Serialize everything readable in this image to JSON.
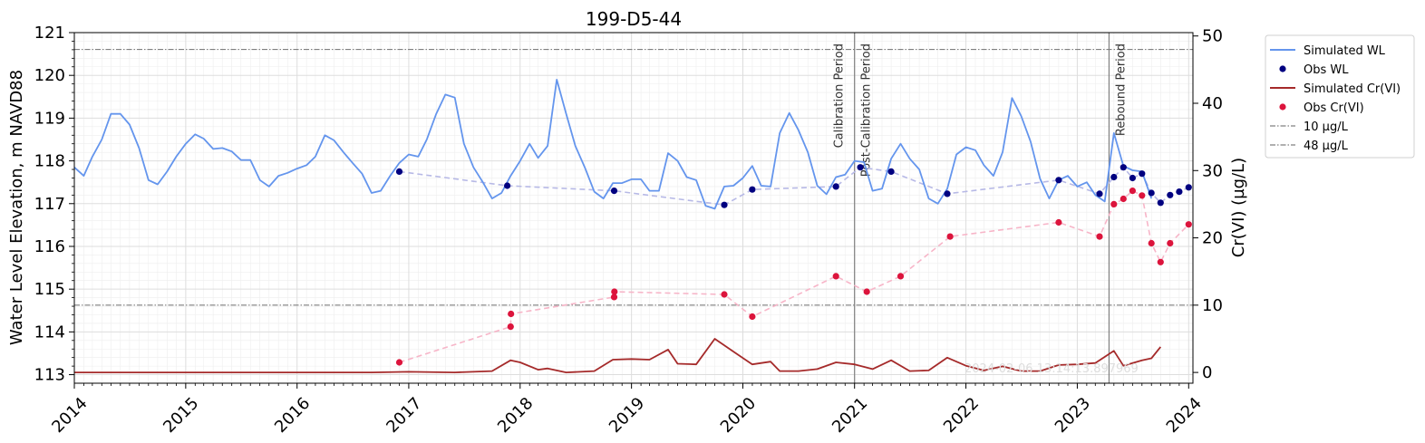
{
  "chart_data": {
    "type": "line",
    "title": "199-D5-44",
    "ylabel": "Water Level Elevation, m NAVD88",
    "y2label": "Cr(VI) (µg/L)",
    "xlim": [
      "2014-01-01",
      "2024-01-15"
    ],
    "ylim": [
      112.8,
      121
    ],
    "y2lim": [
      -1.6,
      50.5
    ],
    "x_ticks": [
      "2014",
      "2015",
      "2016",
      "2017",
      "2018",
      "2019",
      "2020",
      "2021",
      "2022",
      "2023",
      "2024"
    ],
    "y_ticks": [
      "113",
      "114",
      "115",
      "116",
      "117",
      "118",
      "119",
      "120",
      "121"
    ],
    "y2_ticks": [
      "0",
      "10",
      "20",
      "30",
      "40",
      "50"
    ],
    "grid": true,
    "legend_position": "outside-right",
    "legend": [
      "Simulated WL",
      "Obs WL",
      "Simulated Cr(VI)",
      "Obs Cr(VI)",
      "10 µg/L",
      "48 µg/L"
    ],
    "colors": {
      "sim_wl": "#6495ED",
      "obs_wl": "#000080",
      "sim_cr": "#A52A2A",
      "obs_cr": "#DC143C",
      "obs_wl_link": "#b7b9e6",
      "obs_cr_link": "#f7b5c8",
      "threshold": "#808080",
      "period_line": "#808080"
    },
    "thresholds": [
      {
        "name": "10 µg/L",
        "value": 10
      },
      {
        "name": "48 µg/L",
        "value": 48
      }
    ],
    "periods": [
      {
        "label": "Calibration Period",
        "date": "2021-01-01",
        "side": "left"
      },
      {
        "label": "Post-Calibration Period",
        "date": "2021-01-01",
        "side": "right"
      },
      {
        "label": "Rebound Period",
        "date": "2023-04-15",
        "side": "right"
      }
    ],
    "watermark": "2024-02-06 13:14:13.897969",
    "series": [
      {
        "name": "Simulated WL",
        "kind": "line",
        "axis": "left",
        "points": [
          [
            "2014-01-01",
            117.85
          ],
          [
            "2014-02-01",
            117.65
          ],
          [
            "2014-03-01",
            118.1
          ],
          [
            "2014-04-01",
            118.5
          ],
          [
            "2014-05-01",
            119.1
          ],
          [
            "2014-06-01",
            119.1
          ],
          [
            "2014-07-01",
            118.85
          ],
          [
            "2014-08-01",
            118.3
          ],
          [
            "2014-09-01",
            117.55
          ],
          [
            "2014-10-01",
            117.45
          ],
          [
            "2014-11-01",
            117.75
          ],
          [
            "2014-12-01",
            118.1
          ],
          [
            "2015-01-01",
            118.4
          ],
          [
            "2015-02-01",
            118.62
          ],
          [
            "2015-03-01",
            118.52
          ],
          [
            "2015-04-01",
            118.28
          ],
          [
            "2015-05-01",
            118.3
          ],
          [
            "2015-06-01",
            118.22
          ],
          [
            "2015-07-01",
            118.02
          ],
          [
            "2015-08-01",
            118.02
          ],
          [
            "2015-09-01",
            117.55
          ],
          [
            "2015-10-01",
            117.4
          ],
          [
            "2015-11-01",
            117.65
          ],
          [
            "2015-12-01",
            117.72
          ],
          [
            "2016-01-01",
            117.82
          ],
          [
            "2016-02-01",
            117.9
          ],
          [
            "2016-03-01",
            118.1
          ],
          [
            "2016-04-01",
            118.6
          ],
          [
            "2016-05-01",
            118.48
          ],
          [
            "2016-06-01",
            118.2
          ],
          [
            "2016-07-01",
            117.95
          ],
          [
            "2016-08-01",
            117.7
          ],
          [
            "2016-09-01",
            117.25
          ],
          [
            "2016-10-01",
            117.3
          ],
          [
            "2016-11-01",
            117.65
          ],
          [
            "2016-12-01",
            117.95
          ],
          [
            "2017-01-01",
            118.15
          ],
          [
            "2017-02-01",
            118.1
          ],
          [
            "2017-03-01",
            118.5
          ],
          [
            "2017-04-01",
            119.1
          ],
          [
            "2017-05-01",
            119.55
          ],
          [
            "2017-06-01",
            119.48
          ],
          [
            "2017-07-01",
            118.4
          ],
          [
            "2017-08-01",
            117.85
          ],
          [
            "2017-09-01",
            117.5
          ],
          [
            "2017-10-01",
            117.12
          ],
          [
            "2017-11-01",
            117.25
          ],
          [
            "2017-12-01",
            117.65
          ],
          [
            "2018-01-01",
            118.0
          ],
          [
            "2018-02-01",
            118.4
          ],
          [
            "2018-03-01",
            118.07
          ],
          [
            "2018-04-01",
            118.35
          ],
          [
            "2018-05-01",
            119.9
          ],
          [
            "2018-06-01",
            119.1
          ],
          [
            "2018-07-01",
            118.35
          ],
          [
            "2018-08-01",
            117.85
          ],
          [
            "2018-09-01",
            117.28
          ],
          [
            "2018-10-01",
            117.12
          ],
          [
            "2018-11-01",
            117.48
          ],
          [
            "2018-12-01",
            117.48
          ],
          [
            "2019-01-01",
            117.57
          ],
          [
            "2019-02-01",
            117.57
          ],
          [
            "2019-03-01",
            117.3
          ],
          [
            "2019-04-01",
            117.3
          ],
          [
            "2019-05-01",
            118.18
          ],
          [
            "2019-06-01",
            118.0
          ],
          [
            "2019-07-01",
            117.62
          ],
          [
            "2019-08-01",
            117.55
          ],
          [
            "2019-09-01",
            116.95
          ],
          [
            "2019-10-01",
            116.88
          ],
          [
            "2019-11-01",
            117.4
          ],
          [
            "2019-12-01",
            117.42
          ],
          [
            "2020-01-01",
            117.6
          ],
          [
            "2020-02-01",
            117.88
          ],
          [
            "2020-03-01",
            117.42
          ],
          [
            "2020-04-01",
            117.4
          ],
          [
            "2020-05-01",
            118.65
          ],
          [
            "2020-06-01",
            119.12
          ],
          [
            "2020-07-01",
            118.72
          ],
          [
            "2020-08-01",
            118.2
          ],
          [
            "2020-09-01",
            117.42
          ],
          [
            "2020-10-01",
            117.22
          ],
          [
            "2020-11-01",
            117.62
          ],
          [
            "2020-12-01",
            117.68
          ],
          [
            "2021-01-01",
            118.0
          ],
          [
            "2021-02-01",
            117.97
          ],
          [
            "2021-03-01",
            117.3
          ],
          [
            "2021-04-01",
            117.35
          ],
          [
            "2021-05-01",
            118.05
          ],
          [
            "2021-06-01",
            118.4
          ],
          [
            "2021-07-01",
            118.05
          ],
          [
            "2021-08-01",
            117.8
          ],
          [
            "2021-09-01",
            117.12
          ],
          [
            "2021-10-01",
            117.0
          ],
          [
            "2021-11-01",
            117.35
          ],
          [
            "2021-12-01",
            118.15
          ],
          [
            "2022-01-01",
            118.32
          ],
          [
            "2022-02-01",
            118.25
          ],
          [
            "2022-03-01",
            117.9
          ],
          [
            "2022-04-01",
            117.65
          ],
          [
            "2022-05-01",
            118.2
          ],
          [
            "2022-06-01",
            119.47
          ],
          [
            "2022-07-01",
            119.05
          ],
          [
            "2022-08-01",
            118.45
          ],
          [
            "2022-09-01",
            117.58
          ],
          [
            "2022-10-01",
            117.12
          ],
          [
            "2022-11-01",
            117.55
          ],
          [
            "2022-12-01",
            117.65
          ],
          [
            "2023-01-01",
            117.4
          ],
          [
            "2023-02-01",
            117.5
          ],
          [
            "2023-03-01",
            117.2
          ],
          [
            "2023-04-01",
            117.05
          ],
          [
            "2023-05-01",
            118.65
          ],
          [
            "2023-06-01",
            117.88
          ],
          [
            "2023-07-01",
            117.78
          ],
          [
            "2023-08-01",
            117.75
          ],
          [
            "2023-09-01",
            117.12
          ]
        ]
      },
      {
        "name": "Obs WL",
        "kind": "scatter",
        "axis": "left",
        "link": "dashed",
        "points": [
          [
            "2016-12-01",
            117.75
          ],
          [
            "2017-11-20",
            117.42
          ],
          [
            "2018-11-05",
            117.3
          ],
          [
            "2019-11-01",
            116.97
          ],
          [
            "2020-02-01",
            117.33
          ],
          [
            "2020-11-01",
            117.4
          ],
          [
            "2021-01-20",
            117.85
          ],
          [
            "2021-05-01",
            117.75
          ],
          [
            "2021-11-01",
            117.23
          ],
          [
            "2022-11-01",
            117.55
          ],
          [
            "2023-03-15",
            117.23
          ],
          [
            "2023-05-01",
            117.62
          ],
          [
            "2023-06-01",
            117.85
          ],
          [
            "2023-07-01",
            117.6
          ],
          [
            "2023-08-01",
            117.7
          ],
          [
            "2023-09-01",
            117.25
          ],
          [
            "2023-10-01",
            117.02
          ],
          [
            "2023-11-01",
            117.2
          ],
          [
            "2023-12-01",
            117.28
          ],
          [
            "2024-01-01",
            117.38
          ]
        ]
      },
      {
        "name": "Simulated Cr(VI)",
        "kind": "line",
        "axis": "right",
        "points": [
          [
            "2014-01-01",
            0
          ],
          [
            "2015-01-01",
            0
          ],
          [
            "2016-01-01",
            0
          ],
          [
            "2016-09-01",
            0
          ],
          [
            "2017-01-01",
            0.1
          ],
          [
            "2017-06-01",
            0
          ],
          [
            "2017-10-01",
            0.2
          ],
          [
            "2017-12-01",
            1.8
          ],
          [
            "2018-01-01",
            1.5
          ],
          [
            "2018-03-01",
            0.4
          ],
          [
            "2018-04-01",
            0.6
          ],
          [
            "2018-06-01",
            0
          ],
          [
            "2018-09-01",
            0.2
          ],
          [
            "2018-11-01",
            1.9
          ],
          [
            "2019-01-01",
            2.0
          ],
          [
            "2019-03-01",
            1.9
          ],
          [
            "2019-05-01",
            3.4
          ],
          [
            "2019-06-01",
            1.3
          ],
          [
            "2019-08-01",
            1.2
          ],
          [
            "2019-10-01",
            5.0
          ],
          [
            "2019-12-01",
            3.1
          ],
          [
            "2020-02-01",
            1.2
          ],
          [
            "2020-04-01",
            1.6
          ],
          [
            "2020-05-01",
            0.2
          ],
          [
            "2020-07-01",
            0.2
          ],
          [
            "2020-09-01",
            0.5
          ],
          [
            "2020-11-01",
            1.5
          ],
          [
            "2021-01-01",
            1.2
          ],
          [
            "2021-03-01",
            0.5
          ],
          [
            "2021-05-01",
            1.8
          ],
          [
            "2021-07-01",
            0.2
          ],
          [
            "2021-09-01",
            0.3
          ],
          [
            "2021-11-01",
            2.2
          ],
          [
            "2022-01-01",
            1.0
          ],
          [
            "2022-03-01",
            0.3
          ],
          [
            "2022-05-01",
            0.9
          ],
          [
            "2022-07-01",
            0.2
          ],
          [
            "2022-09-01",
            0.2
          ],
          [
            "2022-11-01",
            1.1
          ],
          [
            "2023-01-01",
            1.2
          ],
          [
            "2023-03-01",
            1.4
          ],
          [
            "2023-05-01",
            3.2
          ],
          [
            "2023-06-01",
            1.0
          ],
          [
            "2023-08-01",
            1.8
          ],
          [
            "2023-09-01",
            2.1
          ],
          [
            "2023-10-01",
            3.8
          ]
        ]
      },
      {
        "name": "Obs Cr(VI)",
        "kind": "scatter",
        "axis": "right",
        "link": "dashed",
        "points": [
          [
            "2016-12-01",
            1.5
          ],
          [
            "2017-12-01",
            6.8
          ],
          [
            "2017-12-02",
            8.7
          ],
          [
            "2018-11-05",
            11.2
          ],
          [
            "2018-11-06",
            12.0
          ],
          [
            "2019-11-01",
            11.6
          ],
          [
            "2020-02-01",
            8.3
          ],
          [
            "2020-11-01",
            14.3
          ],
          [
            "2021-02-10",
            12.0
          ],
          [
            "2021-06-01",
            14.3
          ],
          [
            "2021-11-10",
            20.2
          ],
          [
            "2022-11-01",
            22.3
          ],
          [
            "2023-03-15",
            20.2
          ],
          [
            "2023-05-01",
            25.0
          ],
          [
            "2023-06-01",
            25.8
          ],
          [
            "2023-07-01",
            27.0
          ],
          [
            "2023-08-01",
            26.3
          ],
          [
            "2023-09-01",
            19.2
          ],
          [
            "2023-10-01",
            16.4
          ],
          [
            "2023-11-01",
            19.2
          ],
          [
            "2024-01-01",
            22.0
          ]
        ]
      }
    ]
  }
}
